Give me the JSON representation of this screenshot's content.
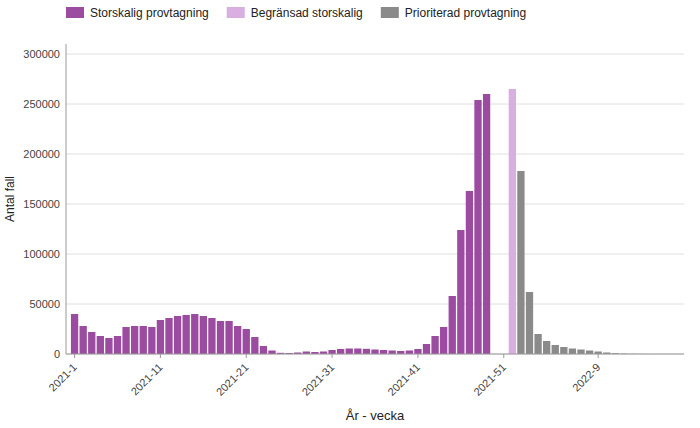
{
  "chart_data": {
    "type": "bar",
    "xlabel": "År - vecka",
    "ylabel": "Antal fall",
    "x": [
      1,
      2,
      3,
      4,
      5,
      6,
      7,
      8,
      9,
      10,
      11,
      12,
      13,
      14,
      15,
      16,
      17,
      18,
      19,
      20,
      21,
      22,
      23,
      24,
      25,
      26,
      27,
      28,
      29,
      30,
      31,
      32,
      33,
      34,
      35,
      36,
      37,
      38,
      39,
      40,
      41,
      42,
      43,
      44,
      45,
      46,
      47,
      48,
      49,
      50,
      51,
      52,
      53,
      54,
      55,
      56,
      57,
      58,
      59,
      60,
      61,
      62,
      63,
      64,
      65,
      66,
      67,
      68,
      69,
      70
    ],
    "series": [
      {
        "name": "Storskalig provtagning",
        "color": "#9B4BA0",
        "values": [
          40000,
          28000,
          22000,
          18000,
          16000,
          18000,
          27000,
          28000,
          28000,
          27000,
          34000,
          36000,
          38000,
          39000,
          40000,
          38000,
          36000,
          33000,
          33000,
          28000,
          25000,
          17000,
          8000,
          3500,
          1200,
          1000,
          1500,
          2500,
          2000,
          2500,
          4000,
          5000,
          5500,
          5500,
          5200,
          4500,
          4000,
          3500,
          3000,
          3500,
          5000,
          10000,
          18000,
          27000,
          58000,
          124000,
          163000,
          254000,
          260000,
          0,
          0,
          0,
          null,
          null,
          null,
          null,
          null,
          null,
          null,
          null,
          null,
          null,
          null,
          null,
          null,
          null,
          null,
          null,
          null,
          null
        ]
      },
      {
        "name": "Begränsad storskalig",
        "color": "#D9AEE0",
        "values": [
          null,
          null,
          null,
          null,
          null,
          null,
          null,
          null,
          null,
          null,
          null,
          null,
          null,
          null,
          null,
          null,
          null,
          null,
          null,
          null,
          null,
          null,
          null,
          null,
          null,
          null,
          null,
          null,
          null,
          null,
          null,
          null,
          null,
          null,
          null,
          null,
          null,
          null,
          null,
          null,
          null,
          null,
          null,
          null,
          null,
          null,
          null,
          null,
          null,
          null,
          null,
          265000,
          null,
          null,
          null,
          null,
          null,
          null,
          null,
          null,
          null,
          null,
          null,
          null,
          null,
          null,
          null,
          null,
          null,
          null
        ]
      },
      {
        "name": "Prioriterad provtagning",
        "color": "#8A8A8A",
        "values": [
          null,
          null,
          null,
          null,
          null,
          null,
          null,
          null,
          null,
          null,
          null,
          null,
          null,
          null,
          null,
          null,
          null,
          null,
          null,
          null,
          null,
          null,
          null,
          null,
          null,
          null,
          null,
          null,
          null,
          null,
          null,
          null,
          null,
          null,
          null,
          null,
          null,
          null,
          null,
          null,
          null,
          null,
          null,
          null,
          null,
          null,
          null,
          null,
          null,
          null,
          null,
          null,
          183000,
          62000,
          20000,
          13000,
          9000,
          7000,
          5500,
          4500,
          3500,
          2500,
          1500,
          800,
          400,
          200,
          100,
          50,
          30,
          10
        ]
      }
    ],
    "xlim": [
      0,
      72
    ],
    "xticks": [
      {
        "value": 1,
        "label": "2021-1"
      },
      {
        "value": 11,
        "label": "2021-11"
      },
      {
        "value": 21,
        "label": "2021-21"
      },
      {
        "value": 31,
        "label": "2021-31"
      },
      {
        "value": 41,
        "label": "2021-41"
      },
      {
        "value": 51,
        "label": "2021-51"
      },
      {
        "value": 62,
        "label": "2022-9"
      }
    ],
    "ylim": [
      0,
      310000
    ],
    "yticks": [
      0,
      50000,
      100000,
      150000,
      200000,
      250000,
      300000
    ],
    "grid": true,
    "legend": "upper left"
  }
}
